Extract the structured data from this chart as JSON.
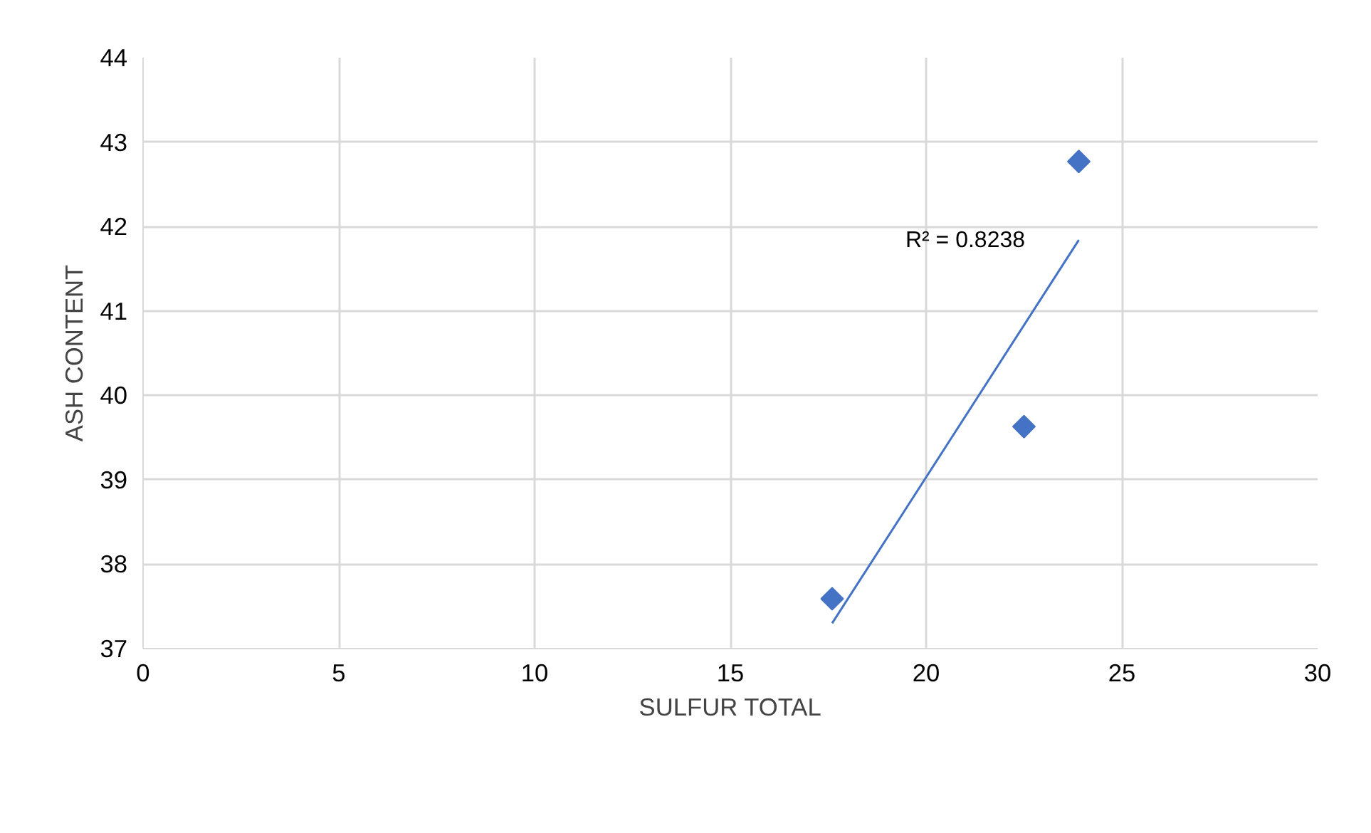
{
  "chart_data": {
    "type": "scatter",
    "xlabel": "SULFUR TOTAL",
    "ylabel": "ASH CONTENT",
    "series": [
      {
        "color": "#4472c4",
        "marker": "diamond",
        "x": [
          17.6,
          22.5,
          23.9
        ],
        "values": [
          37.59,
          39.63,
          42.77
        ]
      },
      {
        "type": "line",
        "color": "#4472c4",
        "marker": "none",
        "line_style": "solid",
        "x": [
          17.6,
          23.9
        ],
        "values": [
          37.3,
          41.84
        ]
      }
    ],
    "annotations": [
      "R² = 0.8238"
    ],
    "xlim": [
      0,
      30
    ],
    "xticks": [
      0,
      5,
      10,
      15,
      20,
      25,
      30
    ],
    "ylim": [
      37,
      44
    ],
    "yticks": [
      37,
      38,
      39,
      40,
      41,
      42,
      43,
      44
    ],
    "grid": true
  }
}
